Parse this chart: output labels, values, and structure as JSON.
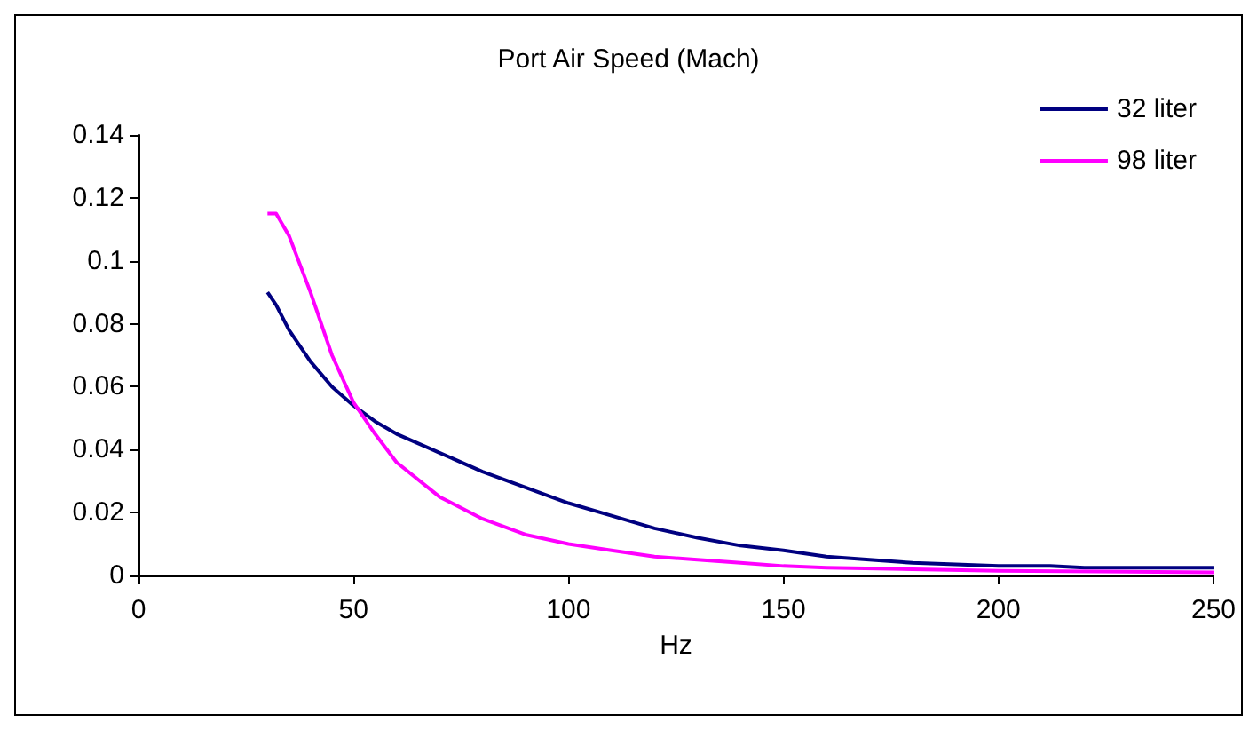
{
  "chart_data": {
    "type": "line",
    "title": "Port Air Speed (Mach)",
    "xlabel": "Hz",
    "xlim": [
      0,
      250
    ],
    "xticks": [
      0,
      50,
      100,
      150,
      200,
      250
    ],
    "ylim": [
      0,
      0.14
    ],
    "yticks": [
      0,
      0.02,
      0.04,
      0.06,
      0.08,
      0.1,
      0.12,
      0.14
    ],
    "grid": false,
    "legend": "top right",
    "marker": "none",
    "line_style": "solid",
    "series": [
      {
        "name": "32 liter",
        "color": "#000080",
        "x": [
          30,
          32,
          35,
          40,
          45,
          50,
          55,
          60,
          70,
          80,
          90,
          100,
          110,
          120,
          130,
          140,
          150,
          160,
          170,
          180,
          190,
          200,
          212,
          220,
          250
        ],
        "values": [
          0.09,
          0.086,
          0.078,
          0.068,
          0.06,
          0.054,
          0.049,
          0.045,
          0.039,
          0.033,
          0.028,
          0.023,
          0.019,
          0.015,
          0.012,
          0.0095,
          0.008,
          0.006,
          0.005,
          0.004,
          0.0035,
          0.003,
          0.003,
          0.0025,
          0.0025
        ]
      },
      {
        "name": "98 liter",
        "color": "#ff00ff",
        "x": [
          30,
          32,
          35,
          40,
          45,
          50,
          55,
          60,
          70,
          80,
          90,
          100,
          110,
          120,
          130,
          140,
          150,
          160,
          180,
          200,
          250
        ],
        "values": [
          0.115,
          0.115,
          0.108,
          0.09,
          0.07,
          0.055,
          0.045,
          0.036,
          0.025,
          0.018,
          0.013,
          0.01,
          0.008,
          0.006,
          0.005,
          0.004,
          0.003,
          0.0025,
          0.002,
          0.0015,
          0.001
        ]
      }
    ]
  }
}
